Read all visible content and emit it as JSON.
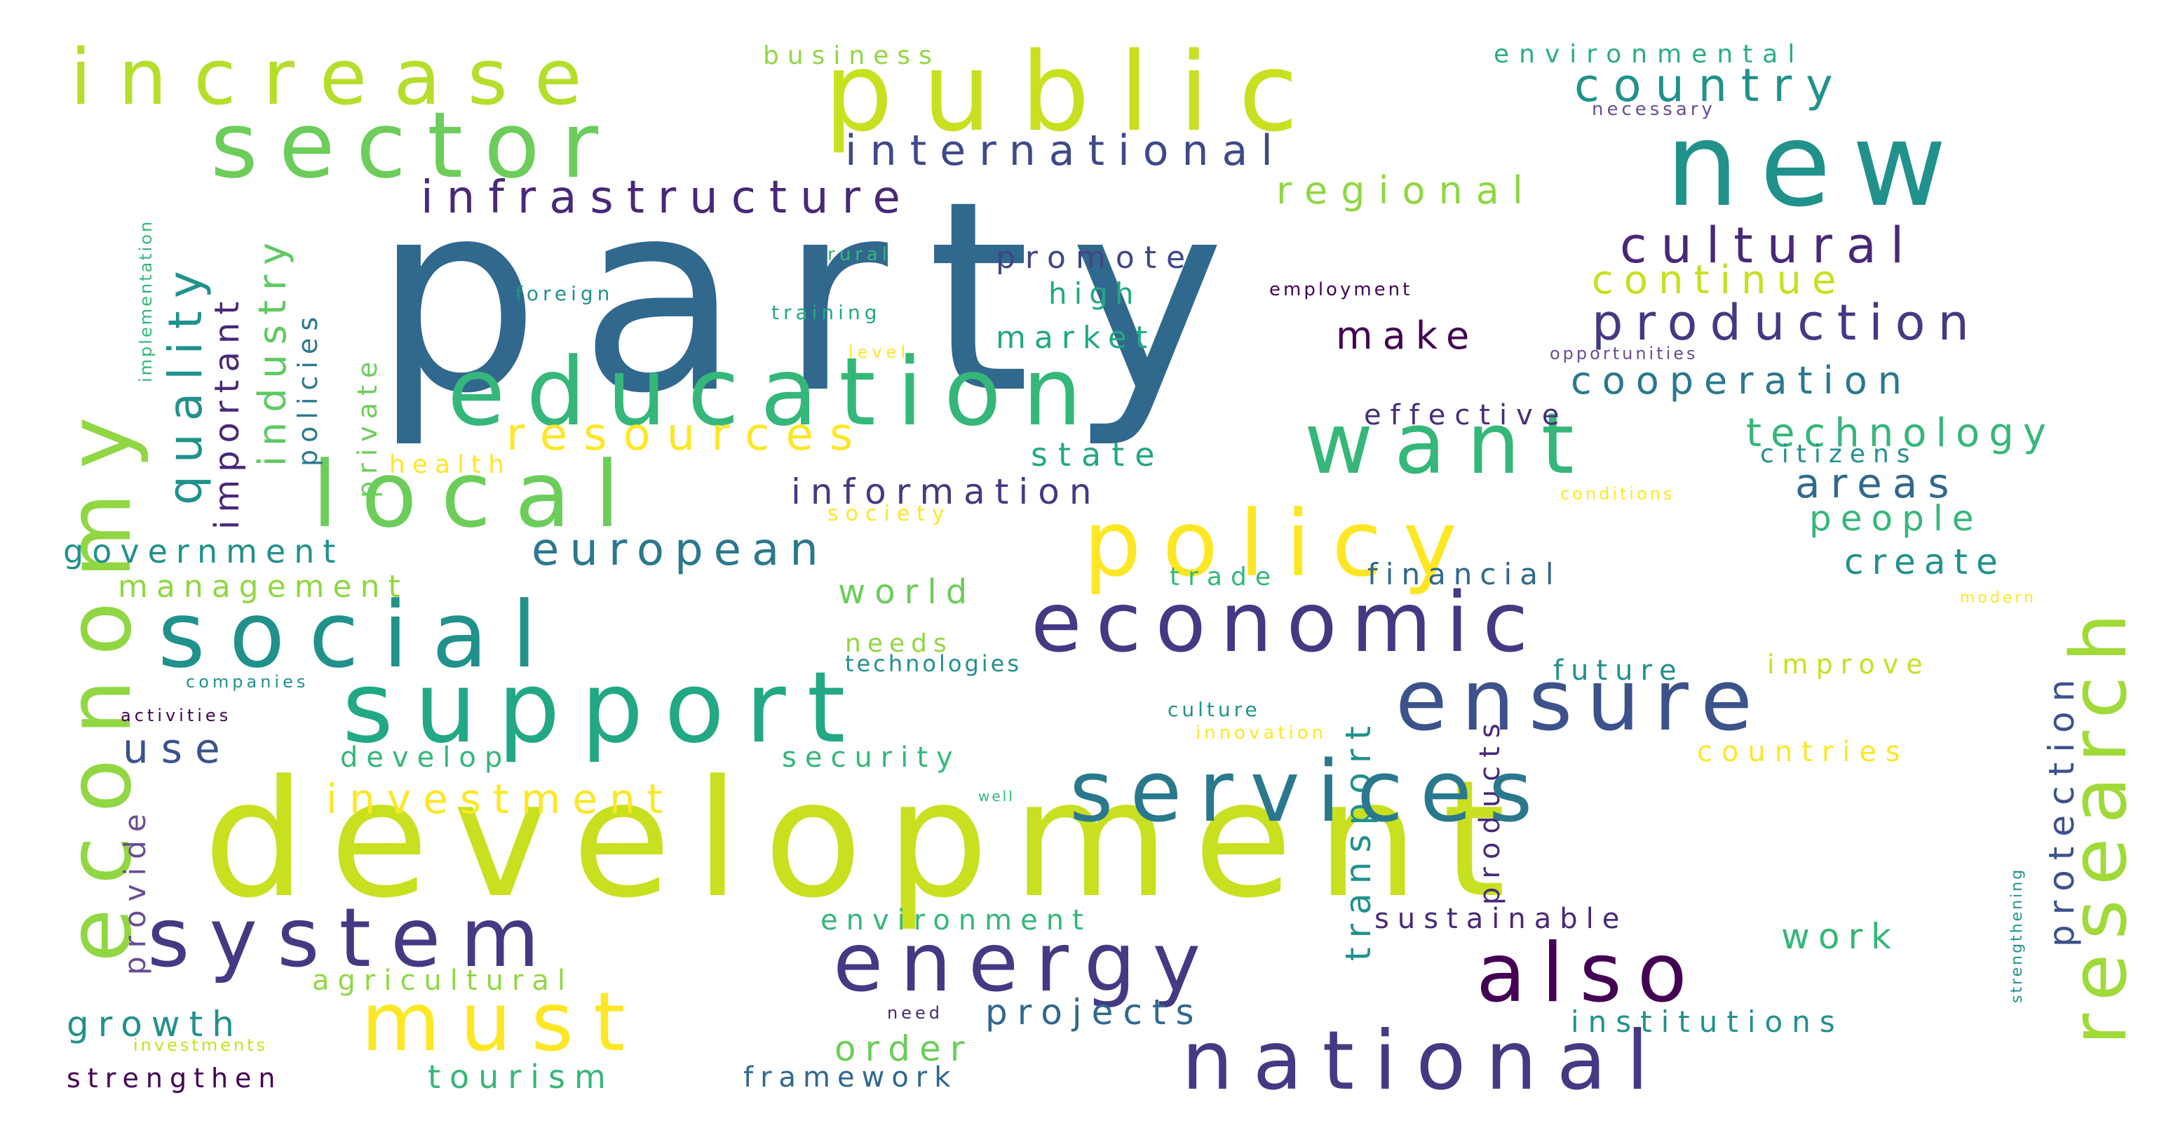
{
  "palette": {
    "background": "#ffffff",
    "colors": [
      "#440154",
      "#443983",
      "#31688e",
      "#21918c",
      "#35b779",
      "#90d743",
      "#c8e020",
      "#fde725"
    ]
  },
  "words": [
    {
      "text": "party",
      "color": "#31688e"
    },
    {
      "text": "development",
      "color": "#c8e020"
    },
    {
      "text": "public",
      "color": "#c8e020"
    },
    {
      "text": "new",
      "color": "#21918c"
    },
    {
      "text": "economy",
      "color": "#90d743"
    },
    {
      "text": "sector",
      "color": "#6ccd5a"
    },
    {
      "text": "increase",
      "color": "#b5de2b"
    },
    {
      "text": "international",
      "color": "#3e4989"
    },
    {
      "text": "country",
      "color": "#21918c"
    },
    {
      "text": "environmental",
      "color": "#29af7f"
    },
    {
      "text": "business",
      "color": "#90d743"
    },
    {
      "text": "necessary",
      "color": "#6a4c93"
    },
    {
      "text": "infrastructure",
      "color": "#482878"
    },
    {
      "text": "regional",
      "color": "#90d743"
    },
    {
      "text": "cultural",
      "color": "#482878"
    },
    {
      "text": "continue",
      "color": "#c8e020"
    },
    {
      "text": "production",
      "color": "#443983"
    },
    {
      "text": "research",
      "color": "#a0da39"
    },
    {
      "text": "education",
      "color": "#35b779"
    },
    {
      "text": "want",
      "color": "#35b779"
    },
    {
      "text": "local",
      "color": "#6ccd5a"
    },
    {
      "text": "policy",
      "color": "#fde725"
    },
    {
      "text": "resources",
      "color": "#fde725"
    },
    {
      "text": "quality",
      "color": "#21918c"
    },
    {
      "text": "important",
      "color": "#482878"
    },
    {
      "text": "industry",
      "color": "#5ec962"
    },
    {
      "text": "policies",
      "color": "#2a788e"
    },
    {
      "text": "private",
      "color": "#6ccd5a"
    },
    {
      "text": "implementation",
      "color": "#35b779"
    },
    {
      "text": "promote",
      "color": "#404688"
    },
    {
      "text": "high",
      "color": "#22a884"
    },
    {
      "text": "market",
      "color": "#22a884"
    },
    {
      "text": "make",
      "color": "#440154"
    },
    {
      "text": "rural",
      "color": "#35b779"
    },
    {
      "text": "foreign",
      "color": "#21918c"
    },
    {
      "text": "training",
      "color": "#22a884"
    },
    {
      "text": "level",
      "color": "#fde725"
    },
    {
      "text": "employment",
      "color": "#440154"
    },
    {
      "text": "opportunities",
      "color": "#6a4c93"
    },
    {
      "text": "cooperation",
      "color": "#2a788e"
    },
    {
      "text": "effective",
      "color": "#472d7b"
    },
    {
      "text": "technology",
      "color": "#35b779"
    },
    {
      "text": "citizens",
      "color": "#21918c"
    },
    {
      "text": "state",
      "color": "#22a884"
    },
    {
      "text": "information",
      "color": "#443983"
    },
    {
      "text": "areas",
      "color": "#31688e"
    },
    {
      "text": "people",
      "color": "#35b779"
    },
    {
      "text": "conditions",
      "color": "#fde725"
    },
    {
      "text": "health",
      "color": "#fde725"
    },
    {
      "text": "society",
      "color": "#fde725"
    },
    {
      "text": "government",
      "color": "#21918c"
    },
    {
      "text": "european",
      "color": "#2a788e"
    },
    {
      "text": "management",
      "color": "#90d743"
    },
    {
      "text": "social",
      "color": "#21918c"
    },
    {
      "text": "economic",
      "color": "#443983"
    },
    {
      "text": "trade",
      "color": "#35b779"
    },
    {
      "text": "financial",
      "color": "#31688e"
    },
    {
      "text": "create",
      "color": "#21918c"
    },
    {
      "text": "modern",
      "color": "#fde725"
    },
    {
      "text": "world",
      "color": "#6ccd5a"
    },
    {
      "text": "needs",
      "color": "#90d743"
    },
    {
      "text": "technologies",
      "color": "#21918c"
    },
    {
      "text": "future",
      "color": "#21918c"
    },
    {
      "text": "improve",
      "color": "#c8e020"
    },
    {
      "text": "support",
      "color": "#22a884"
    },
    {
      "text": "ensure",
      "color": "#3b528b"
    },
    {
      "text": "companies",
      "color": "#21918c"
    },
    {
      "text": "activities",
      "color": "#440154"
    },
    {
      "text": "culture",
      "color": "#21918c"
    },
    {
      "text": "innovation",
      "color": "#fde725"
    },
    {
      "text": "transport",
      "color": "#21918c"
    },
    {
      "text": "products",
      "color": "#482878"
    },
    {
      "text": "protection",
      "color": "#3b528b"
    },
    {
      "text": "use",
      "color": "#3b528b"
    },
    {
      "text": "develop",
      "color": "#35b779"
    },
    {
      "text": "security",
      "color": "#35b779"
    },
    {
      "text": "countries",
      "color": "#fde725"
    },
    {
      "text": "strengthening",
      "color": "#21918c"
    },
    {
      "text": "services",
      "color": "#2a788e"
    },
    {
      "text": "provide",
      "color": "#6a4c93"
    },
    {
      "text": "investment",
      "color": "#fde725"
    },
    {
      "text": "well",
      "color": "#35b779"
    },
    {
      "text": "environment",
      "color": "#35b779"
    },
    {
      "text": "sustainable",
      "color": "#482878"
    },
    {
      "text": "work",
      "color": "#35b779"
    },
    {
      "text": "system",
      "color": "#443983"
    },
    {
      "text": "energy",
      "color": "#443983"
    },
    {
      "text": "also",
      "color": "#440154"
    },
    {
      "text": "must",
      "color": "#fde725"
    },
    {
      "text": "agricultural",
      "color": "#90d743"
    },
    {
      "text": "growth",
      "color": "#21918c"
    },
    {
      "text": "projects",
      "color": "#31688e"
    },
    {
      "text": "need",
      "color": "#482878"
    },
    {
      "text": "institutions",
      "color": "#21918c"
    },
    {
      "text": "national",
      "color": "#443983"
    },
    {
      "text": "investments",
      "color": "#c8e020"
    },
    {
      "text": "order",
      "color": "#6ccd5a"
    },
    {
      "text": "strengthen",
      "color": "#440154"
    },
    {
      "text": "tourism",
      "color": "#35b779"
    },
    {
      "text": "framework",
      "color": "#31688e"
    }
  ]
}
